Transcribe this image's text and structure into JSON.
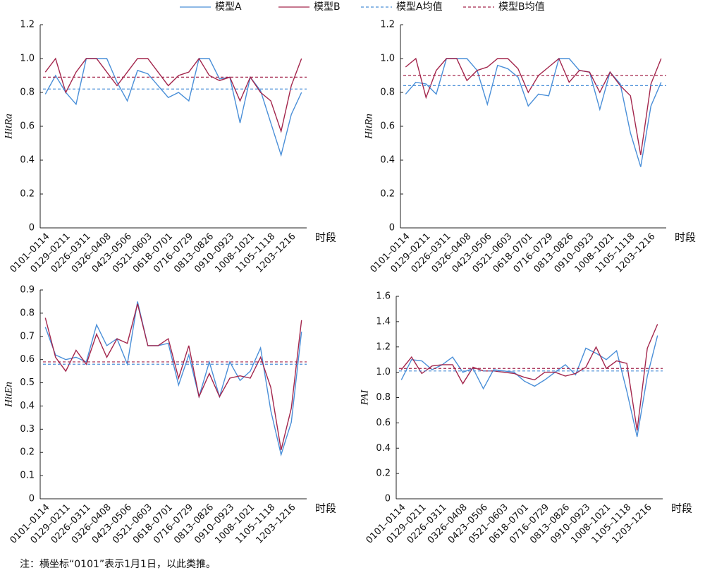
{
  "chart_data": [
    {
      "type": "line",
      "ylabel": "HitRa",
      "xlabel": "时段",
      "categories": [
        "0101–0114",
        null,
        "0129–0211",
        null,
        "0226–0311",
        null,
        "0326–0408",
        null,
        "0423–0506",
        null,
        "0521–0603",
        null,
        "0618–0701",
        null,
        "0716–0729",
        null,
        "0813–0826",
        null,
        "0910–0923",
        null,
        "1008–1021",
        null,
        "1105–1118",
        null,
        "1203–1216",
        null
      ],
      "ylim": [
        0,
        1.2
      ],
      "yticks": [
        0,
        0.2,
        0.4,
        0.6,
        0.8,
        {
          "value": 1,
          "label": "1.0"
        },
        1.2
      ],
      "series": [
        {
          "name": "模型A",
          "color": "#4a8fd8",
          "values": [
            0.79,
            0.9,
            0.8,
            0.73,
            1.0,
            1.0,
            1.0,
            0.86,
            0.75,
            0.93,
            0.91,
            0.84,
            0.77,
            0.8,
            0.75,
            1.0,
            1.0,
            0.88,
            0.89,
            0.62,
            0.89,
            0.81,
            0.62,
            0.43,
            0.67,
            0.8
          ]
        },
        {
          "name": "模型B",
          "color": "#a3264c",
          "values": [
            0.92,
            1.0,
            0.8,
            0.92,
            1.0,
            1.0,
            0.92,
            0.84,
            0.92,
            1.0,
            1.0,
            0.92,
            0.84,
            0.9,
            0.92,
            1.0,
            0.9,
            0.87,
            0.89,
            0.75,
            0.89,
            0.8,
            0.75,
            0.57,
            0.84,
            1.0
          ]
        },
        {
          "name": "模型A均值",
          "color": "#4a8fd8",
          "dash": true,
          "value": 0.82
        },
        {
          "name": "模型B均值",
          "color": "#a3264c",
          "dash": true,
          "value": 0.89
        }
      ]
    },
    {
      "type": "line",
      "ylabel": "HitRn",
      "xlabel": "时段",
      "categories": [
        "0101–0114",
        null,
        "0129–0211",
        null,
        "0226–0311",
        null,
        "0326–0408",
        null,
        "0423–0506",
        null,
        "0521–0603",
        null,
        "0618–0701",
        null,
        "0716–0729",
        null,
        "0813–0826",
        null,
        "0910–0923",
        null,
        "1008–1021",
        null,
        "1105–1118",
        null,
        "1203–1216",
        null
      ],
      "ylim": [
        0,
        1.2
      ],
      "yticks": [
        0,
        0.2,
        0.4,
        0.6,
        0.8,
        {
          "value": 1,
          "label": "1.0"
        },
        1.2
      ],
      "series": [
        {
          "name": "模型A",
          "color": "#4a8fd8",
          "values": [
            0.79,
            0.86,
            0.85,
            0.79,
            1.0,
            1.0,
            1.0,
            0.93,
            0.73,
            0.96,
            0.94,
            0.89,
            0.72,
            0.79,
            0.78,
            1.0,
            1.0,
            0.93,
            0.92,
            0.7,
            0.92,
            0.85,
            0.56,
            0.36,
            0.72,
            0.86
          ]
        },
        {
          "name": "模型B",
          "color": "#a3264c",
          "values": [
            0.95,
            1.0,
            0.77,
            0.93,
            1.0,
            1.0,
            0.87,
            0.93,
            0.95,
            1.0,
            1.0,
            0.94,
            0.8,
            0.9,
            0.95,
            1.0,
            0.86,
            0.93,
            0.92,
            0.8,
            0.92,
            0.84,
            0.78,
            0.43,
            0.85,
            1.0
          ]
        },
        {
          "name": "模型A均值",
          "color": "#4a8fd8",
          "dash": true,
          "value": 0.84
        },
        {
          "name": "模型B均值",
          "color": "#a3264c",
          "dash": true,
          "value": 0.9
        }
      ]
    },
    {
      "type": "line",
      "ylabel": "HitEn",
      "xlabel": "时段",
      "categories": [
        "0101–0114",
        null,
        "0129–0211",
        null,
        "0226–0311",
        null,
        "0326–0408",
        null,
        "0423–0506",
        null,
        "0521–0603",
        null,
        "0618–0701",
        null,
        "0716–0729",
        null,
        "0813–0826",
        null,
        "0910–0923",
        null,
        "1008–1021",
        null,
        "1105–1118",
        null,
        "1203–1216",
        null
      ],
      "ylim": [
        0,
        0.9
      ],
      "yticks": [
        0,
        0.1,
        0.2,
        0.3,
        0.4,
        0.5,
        0.6,
        0.7,
        0.8,
        0.9
      ],
      "series": [
        {
          "name": "模型A",
          "color": "#4a8fd8",
          "values": [
            0.74,
            0.62,
            0.6,
            0.61,
            0.59,
            0.75,
            0.66,
            0.69,
            0.58,
            0.85,
            0.66,
            0.66,
            0.67,
            0.49,
            0.62,
            0.44,
            0.59,
            0.44,
            0.59,
            0.51,
            0.55,
            0.65,
            0.38,
            0.19,
            0.33,
            0.72
          ]
        },
        {
          "name": "模型B",
          "color": "#a3264c",
          "values": [
            0.78,
            0.61,
            0.55,
            0.64,
            0.58,
            0.71,
            0.61,
            0.69,
            0.67,
            0.84,
            0.66,
            0.66,
            0.69,
            0.52,
            0.66,
            0.44,
            0.54,
            0.44,
            0.52,
            0.53,
            0.52,
            0.61,
            0.48,
            0.21,
            0.39,
            0.77
          ]
        },
        {
          "name": "模型A均值",
          "color": "#4a8fd8",
          "dash": true,
          "value": 0.58
        },
        {
          "name": "模型B均值",
          "color": "#a3264c",
          "dash": true,
          "value": 0.59
        }
      ]
    },
    {
      "type": "line",
      "ylabel": "PAI",
      "xlabel": "时段",
      "categories": [
        "0101–0114",
        null,
        "0129–0211",
        null,
        "0226–0311",
        null,
        "0326–0408",
        null,
        "0423–0506",
        null,
        "0521–0603",
        null,
        "0618–0701",
        null,
        "0716–0729",
        null,
        "0813–0826",
        null,
        "0910–0923",
        null,
        "1008–1021",
        null,
        "1105–1118",
        null,
        "1203–1216",
        null
      ],
      "ylim": [
        0,
        1.6
      ],
      "yticks": [
        0,
        0.2,
        0.4,
        0.6,
        0.8,
        {
          "value": 1,
          "label": "1.0"
        },
        1.2,
        1.4,
        1.6
      ],
      "series": [
        {
          "name": "模型A",
          "color": "#4a8fd8",
          "values": [
            0.94,
            1.1,
            1.09,
            1.02,
            1.06,
            1.12,
            1.0,
            1.03,
            0.87,
            1.02,
            1.01,
            1.0,
            0.93,
            0.89,
            0.94,
            1.0,
            1.06,
            0.98,
            1.19,
            1.15,
            1.1,
            1.17,
            0.85,
            0.49,
            0.97,
            1.29
          ]
        },
        {
          "name": "模型B",
          "color": "#a3264c",
          "values": [
            1.02,
            1.12,
            0.99,
            1.05,
            1.06,
            1.06,
            0.91,
            1.04,
            1.01,
            1.01,
            1.0,
            0.99,
            0.96,
            0.94,
            1.0,
            1.0,
            0.97,
            0.99,
            1.04,
            1.2,
            1.03,
            1.09,
            1.07,
            0.54,
            1.19,
            1.38
          ]
        },
        {
          "name": "模型A均值",
          "color": "#4a8fd8",
          "dash": true,
          "value": 1.01
        },
        {
          "name": "模型B均值",
          "color": "#a3264c",
          "dash": true,
          "value": 1.03
        }
      ]
    }
  ],
  "note": "注：横坐标“0101”表示1月1日，以此类推。"
}
